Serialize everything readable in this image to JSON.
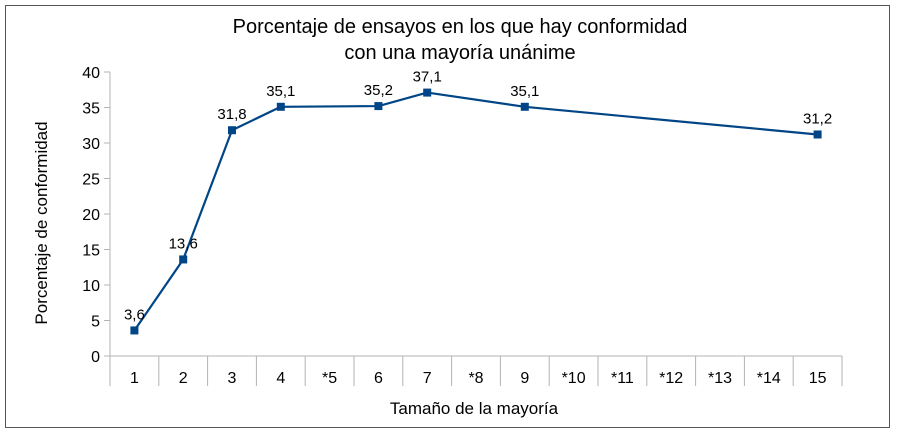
{
  "chart_data": {
    "type": "line",
    "title": "Porcentaje de ensayos en los que hay conformidad\ncon una mayoría unánime",
    "xlabel": "Tamaño de la mayoría",
    "ylabel": "Porcentaje de conformidad",
    "categories": [
      "1",
      "2",
      "3",
      "4",
      "*5",
      "6",
      "7",
      "*8",
      "9",
      "*10",
      "*11",
      "*12",
      "*13",
      "*14",
      "15"
    ],
    "series": [
      {
        "name": "",
        "values": [
          3.6,
          13.6,
          31.8,
          35.1,
          null,
          35.2,
          37.1,
          null,
          35.1,
          null,
          null,
          null,
          null,
          null,
          31.2
        ],
        "labels": [
          "3,6",
          "13,6",
          "31,8",
          "35,1",
          "",
          "35,2",
          "37,1",
          "",
          "35,1",
          "",
          "",
          "",
          "",
          "",
          "31,2"
        ]
      }
    ],
    "ylim": [
      0,
      40
    ],
    "yticks": [
      "0",
      "5",
      "10",
      "15",
      "20",
      "25",
      "30",
      "35",
      "40"
    ],
    "grid": false,
    "colors": {
      "line": "#004586",
      "marker": "#004586",
      "axis": "#b3b3b3"
    }
  }
}
